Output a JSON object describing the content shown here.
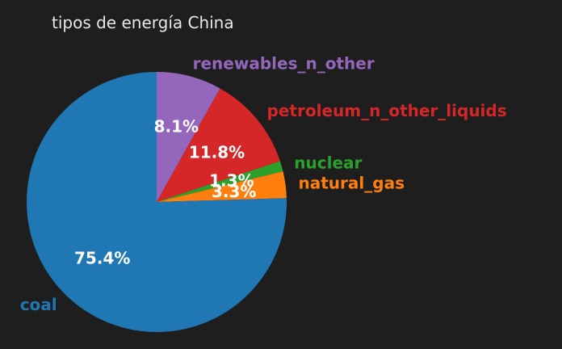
{
  "chart_data": {
    "type": "pie",
    "title": "tipos de energía China",
    "slices": [
      {
        "label": "renewables_n_other",
        "value": 8.1,
        "pct_label": "8.1%",
        "color": "#9467bd"
      },
      {
        "label": "petroleum_n_other_liquids",
        "value": 11.8,
        "pct_label": "11.8%",
        "color": "#d62728"
      },
      {
        "label": "nuclear",
        "value": 1.3,
        "pct_label": "1.3%",
        "color": "#2ca02c"
      },
      {
        "label": "natural_gas",
        "value": 3.3,
        "pct_label": "3.3%",
        "color": "#ff7f0e"
      },
      {
        "label": "coal",
        "value": 75.4,
        "pct_label": "75.4%",
        "color": "#1f77b4"
      }
    ],
    "start_angle": "90 degrees (top)",
    "direction": "clockwise",
    "background": "#1e1e1e"
  }
}
